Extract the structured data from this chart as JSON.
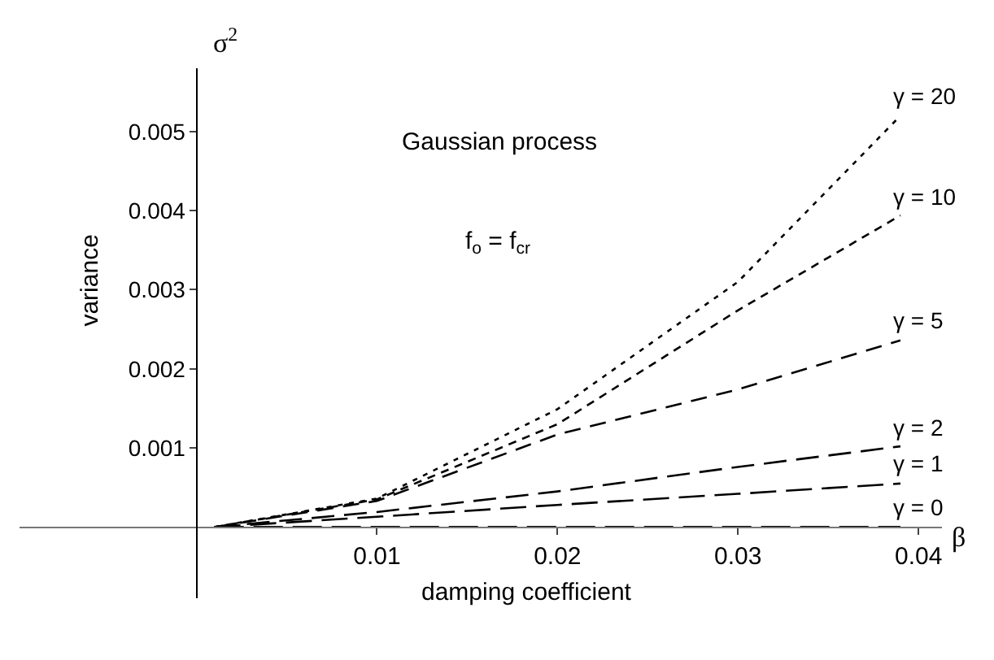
{
  "chart_data": {
    "type": "line",
    "xlabel": "damping coefficient",
    "ylabel": "variance",
    "annotations": [
      "Gaussian process",
      "f$_{o}$ = f$_{cr}$",
      "σ$^{2}$",
      "β"
    ],
    "x": [
      0.001,
      0.01,
      0.02,
      0.03,
      0.039
    ],
    "series": [
      {
        "name": "γ = 20",
        "color": "#000000",
        "values": [
          0,
          0.00036,
          0.00149,
          0.0031,
          0.0052
        ]
      },
      {
        "name": "γ = 10",
        "color": "#000000",
        "values": [
          0,
          0.00035,
          0.0013,
          0.00274,
          0.00394
        ]
      },
      {
        "name": "γ = 5",
        "color": "#000000",
        "values": [
          0,
          0.00033,
          0.00117,
          0.00174,
          0.00236
        ]
      },
      {
        "name": "γ = 2",
        "color": "#000000",
        "values": [
          0,
          0.00019,
          0.00045,
          0.00076,
          0.00102
        ]
      },
      {
        "name": "γ = 1",
        "color": "#000000",
        "values": [
          0,
          0.00013,
          0.00028,
          0.00042,
          0.00055
        ]
      },
      {
        "name": "γ = 0",
        "color": "#000000",
        "values": [
          0,
          0,
          0,
          0,
          0
        ]
      }
    ],
    "xlim": [
      -0.0098,
      0.0413
    ],
    "ylim": [
      -0.0009,
      0.0058
    ],
    "xticks": [
      0.01,
      0.02,
      0.03,
      0.04
    ],
    "yticks": [
      0.001,
      0.002,
      0.003,
      0.004,
      0.005
    ],
    "legend": false,
    "line_style": "dashed",
    "marker": "none"
  }
}
